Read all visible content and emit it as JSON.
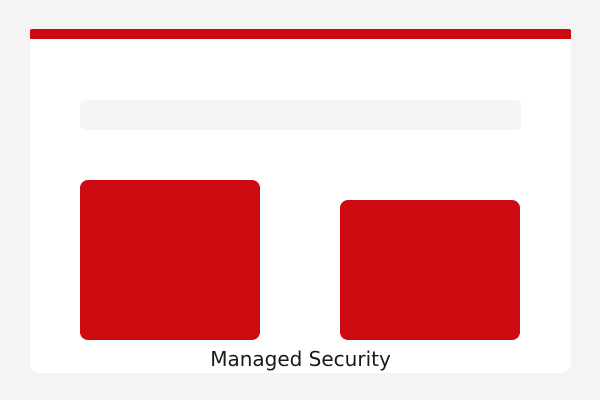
{
  "page": {
    "background_color": "#f5f4f5"
  },
  "card": {
    "title": "Managed Security",
    "accent_color": "#cc0a10",
    "background_color": "#ffffff",
    "placeholder_color": "#f5f5f5",
    "title_color": "#1a1a1a"
  }
}
